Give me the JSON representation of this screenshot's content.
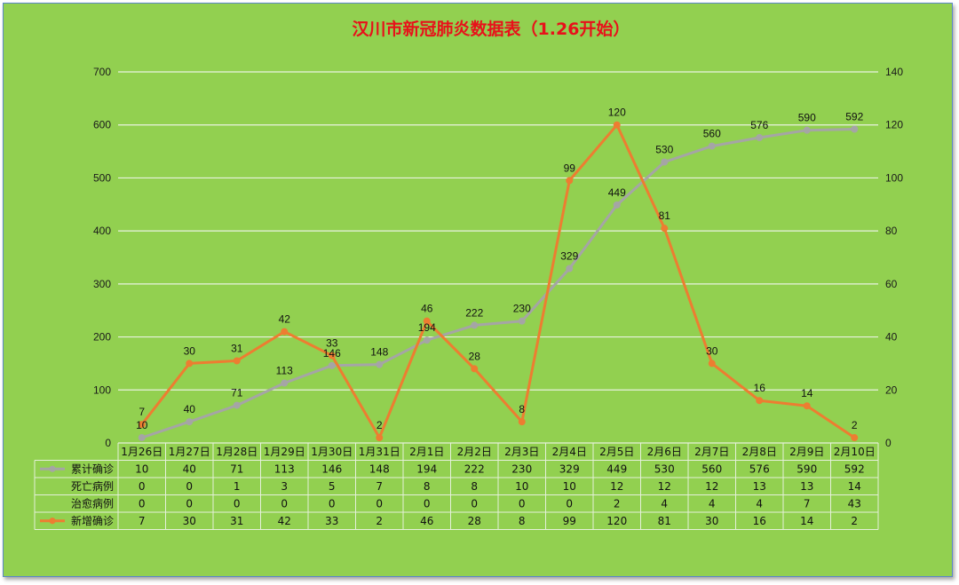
{
  "chart_data": {
    "type": "line",
    "title": "汉川市新冠肺炎数据表（1.26开始）",
    "categories": [
      "1月26日",
      "1月27日",
      "1月28日",
      "1月29日",
      "1月30日",
      "1月31日",
      "2月1日",
      "2月2日",
      "2月3日",
      "2月4日",
      "2月5日",
      "2月6日",
      "2月7日",
      "2月8日",
      "2月9日",
      "2月10日"
    ],
    "y_left": {
      "min": 0,
      "max": 700,
      "ticks": [
        "0",
        "100",
        "200",
        "300",
        "400",
        "500",
        "600",
        "700"
      ]
    },
    "y_right": {
      "min": 0,
      "max": 140,
      "ticks": [
        "0",
        "20",
        "40",
        "60",
        "80",
        "100",
        "120",
        "140"
      ]
    },
    "grid": true,
    "legend": "data-table",
    "series": [
      {
        "name": "累计确诊",
        "axis": "left",
        "plotted": true,
        "color": "#a5a5a5",
        "values": [
          10,
          40,
          71,
          113,
          146,
          148,
          194,
          222,
          230,
          329,
          449,
          530,
          560,
          576,
          590,
          592
        ]
      },
      {
        "name": "死亡病例",
        "axis": "none",
        "plotted": false,
        "values": [
          0,
          0,
          1,
          3,
          5,
          7,
          8,
          8,
          10,
          10,
          12,
          12,
          12,
          13,
          13,
          14
        ]
      },
      {
        "name": "治愈病例",
        "axis": "none",
        "plotted": false,
        "values": [
          0,
          0,
          0,
          0,
          0,
          0,
          0,
          0,
          0,
          0,
          2,
          4,
          4,
          4,
          7,
          43
        ]
      },
      {
        "name": "新增确诊",
        "axis": "right",
        "plotted": true,
        "color": "#ed7d31",
        "values": [
          7,
          30,
          31,
          42,
          33,
          2,
          46,
          28,
          8,
          99,
          120,
          81,
          30,
          16,
          14,
          2
        ]
      }
    ]
  }
}
